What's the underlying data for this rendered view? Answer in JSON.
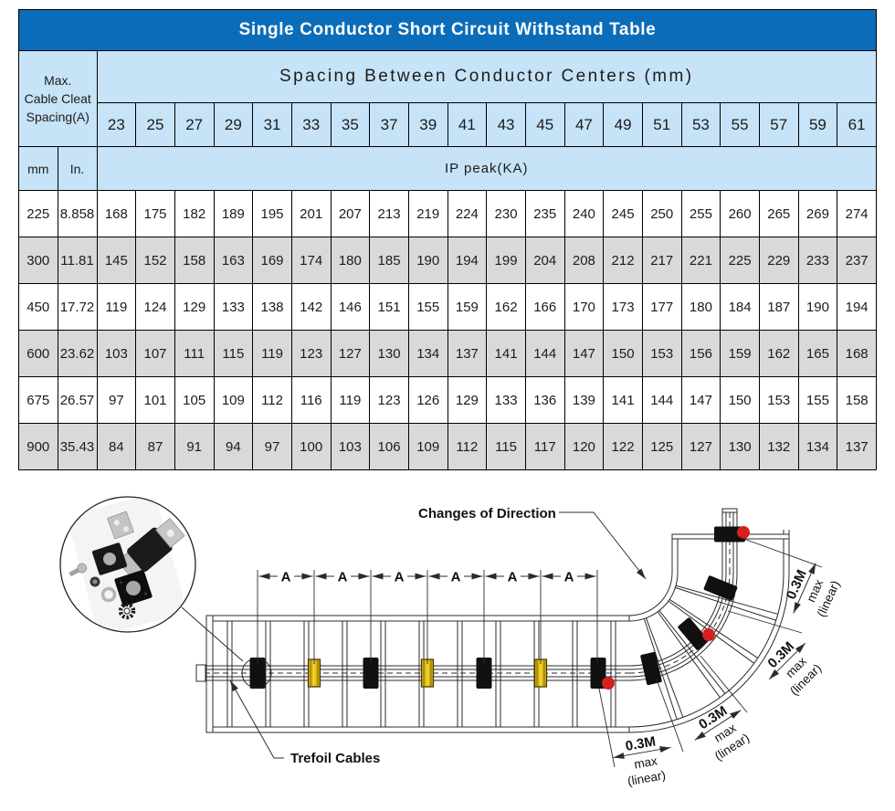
{
  "title": "Single Conductor Short Circuit Withstand Table",
  "table": {
    "left_header": "Max.\nCable Cleat\nSpacing(A)",
    "spacing_header": "Spacing Between Conductor Centers (mm)",
    "col_headers": [
      "23",
      "25",
      "27",
      "29",
      "31",
      "33",
      "35",
      "37",
      "39",
      "41",
      "43",
      "45",
      "47",
      "49",
      "51",
      "53",
      "55",
      "57",
      "59",
      "61"
    ],
    "unit_mm": "mm",
    "unit_in": "In.",
    "ip_peak_header": "IP peak(KA)",
    "rows": [
      {
        "mm": "225",
        "inch": "8.858",
        "values": [
          "168",
          "175",
          "182",
          "189",
          "195",
          "201",
          "207",
          "213",
          "219",
          "224",
          "230",
          "235",
          "240",
          "245",
          "250",
          "255",
          "260",
          "265",
          "269",
          "274"
        ]
      },
      {
        "mm": "300",
        "inch": "11.81",
        "values": [
          "145",
          "152",
          "158",
          "163",
          "169",
          "174",
          "180",
          "185",
          "190",
          "194",
          "199",
          "204",
          "208",
          "212",
          "217",
          "221",
          "225",
          "229",
          "233",
          "237"
        ]
      },
      {
        "mm": "450",
        "inch": "17.72",
        "values": [
          "119",
          "124",
          "129",
          "133",
          "138",
          "142",
          "146",
          "151",
          "155",
          "159",
          "162",
          "166",
          "170",
          "173",
          "177",
          "180",
          "184",
          "187",
          "190",
          "194"
        ]
      },
      {
        "mm": "600",
        "inch": "23.62",
        "values": [
          "103",
          "107",
          "111",
          "115",
          "119",
          "123",
          "127",
          "130",
          "134",
          "137",
          "141",
          "144",
          "147",
          "150",
          "153",
          "156",
          "159",
          "162",
          "165",
          "168"
        ]
      },
      {
        "mm": "675",
        "inch": "26.57",
        "values": [
          "97",
          "101",
          "105",
          "109",
          "112",
          "116",
          "119",
          "123",
          "126",
          "129",
          "133",
          "136",
          "139",
          "141",
          "144",
          "147",
          "150",
          "153",
          "155",
          "158"
        ]
      },
      {
        "mm": "900",
        "inch": "35.43",
        "values": [
          "84",
          "87",
          "91",
          "94",
          "97",
          "100",
          "103",
          "106",
          "109",
          "112",
          "115",
          "117",
          "120",
          "122",
          "125",
          "127",
          "130",
          "132",
          "134",
          "137"
        ]
      }
    ]
  },
  "diagram": {
    "changes_label": "Changes of Direction",
    "trefoil_label": "Trefoil Cables",
    "dim_a_label": "A",
    "dim03_line1": "0.3M",
    "dim03_line2": "max",
    "dim03_line3": "(linear)"
  },
  "colors": {
    "title_bg": "#0b6db9",
    "header_bg": "#c7e3f7",
    "row_gray": "#d9d9d9",
    "border": "#000000",
    "cleat_black": "#101010",
    "cleat_yellow": "#d6b211",
    "marker_red": "#d32020",
    "line": "#2b2b2b"
  }
}
